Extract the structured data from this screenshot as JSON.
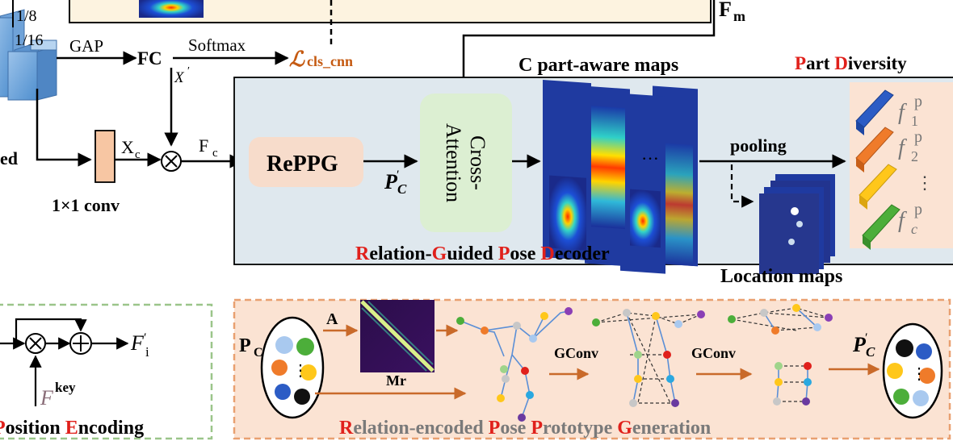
{
  "top": {
    "scale_1_8": "1/8",
    "scale_1_16": "1/16",
    "gap": "GAP",
    "fc": "FC",
    "softmax": "Softmax",
    "loss_main": "ℒ",
    "loss_sub": "cls_cnn",
    "x_prime": "X",
    "x_prime_mark": "′",
    "fm_main": "F",
    "fm_sub": "m",
    "feat_label": "ed",
    "xc_main": "X",
    "xc_sub": "c",
    "fc_main": "F",
    "fc_sub": "c",
    "conv_label": "1×1 conv",
    "reppg": "RePPG",
    "pc_prime_main": "P",
    "pc_prime_mark": "′",
    "pc_prime_sub": "C",
    "cross_line1": "Cross-",
    "cross_line2": "Attention",
    "part_maps_title": "C part-aware maps",
    "pooling": "pooling",
    "location_maps": "Location maps",
    "part_div_p": "P",
    "part_div_rest": "art ",
    "part_div_d": "D",
    "part_div_rest2": "iversity",
    "f_sym": "f",
    "f_sup": "p",
    "f1_sub": "1",
    "f2_sub": "2",
    "fc_sub_sym": "c",
    "vdots": "⋮",
    "dots_h": "···",
    "decoder_title": {
      "r": "R",
      "r_rest": "elation-",
      "g": "G",
      "g_rest": "uided ",
      "p": "P",
      "p_rest": "ose ",
      "d": "D",
      "d_rest": "ecoder"
    }
  },
  "bottom_left": {
    "f_out_main": "F",
    "f_out_mark": "′",
    "f_out_sub": "i",
    "fkey_main": "F",
    "fkey_sup": "key",
    "title_p": "P",
    "title_p_rest": "osition  ",
    "title_e": "E",
    "title_e_rest": "ncoding"
  },
  "bottom_right": {
    "pc_main": "P",
    "pc_sub": "C",
    "a_label": "A",
    "mr_label": "Mr",
    "gconv1": "GConv",
    "gconv2": "GConv",
    "pc_prime_main": "P",
    "pc_prime_mark": "′",
    "pc_prime_sub": "C",
    "vdots": "⋮",
    "title": {
      "r": "R",
      "r_rest": "elation-encoded  ",
      "p": "P",
      "p_rest": "ose  ",
      "p2": "P",
      "p2_rest": "rototype  ",
      "g": "G",
      "g_rest": "eneration"
    }
  },
  "colors": {
    "red_accent": "#e0201b",
    "orange_accent": "#c55a11",
    "decoder_bg": "#dfe8ee",
    "prototype_bg": "#fbe3d3",
    "position_bg": "#ffffff",
    "dashed_green": "#9bc58a",
    "dashed_orange": "#e9a070",
    "cross_attn_bg": "#dcefd2",
    "reppg_bg": "#f7dccb",
    "part_div_bg": "#fbe3d3",
    "arrow_orange": "#c96a2a"
  }
}
